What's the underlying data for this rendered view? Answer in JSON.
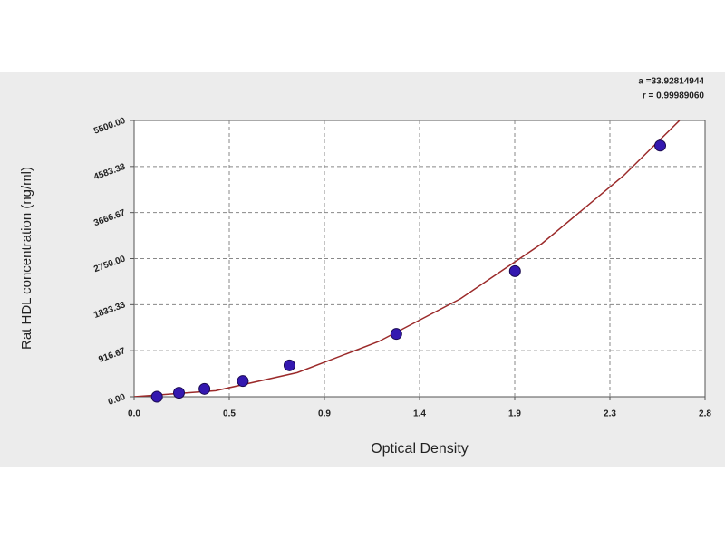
{
  "chart_data": {
    "type": "scatter",
    "annotations": [
      "a =33.92814944",
      "r = 0.99989060"
    ],
    "x_label": "Optical Density",
    "y_label": "Rat HDL concentration (ng/ml)",
    "xlim": [
      0,
      2.8
    ],
    "xticks": [
      {
        "value": 0,
        "label": "0.0"
      },
      {
        "value": 0.4667,
        "label": "0.5"
      },
      {
        "value": 0.9333,
        "label": "0.9"
      },
      {
        "value": 1.4,
        "label": "1.4"
      },
      {
        "value": 1.8667,
        "label": "1.9"
      },
      {
        "value": 2.3333,
        "label": "2.3"
      },
      {
        "value": 2.8,
        "label": "2.8"
      }
    ],
    "ylim": [
      0,
      5500
    ],
    "yticks": [
      {
        "value": 0,
        "label": "0.00"
      },
      {
        "value": 916.67,
        "label": "916.67"
      },
      {
        "value": 1833.33,
        "label": "1833.33"
      },
      {
        "value": 2750,
        "label": "2750.00"
      },
      {
        "value": 3666.67,
        "label": "3666.67"
      },
      {
        "value": 4583.33,
        "label": "4583.33"
      },
      {
        "value": 5500,
        "label": "5500.00"
      }
    ],
    "grid": true,
    "series": [
      {
        "style": "markers",
        "color": "#3418b0",
        "x": [
          0.112,
          0.22,
          0.345,
          0.533,
          0.762,
          1.286,
          1.868,
          2.58
        ],
        "values": [
          0,
          78.1,
          156.25,
          312.5,
          625,
          1250,
          2500,
          5000
        ]
      },
      {
        "style": "line",
        "color": "#9b2a2a",
        "x": [
          0,
          0.4,
          0.8,
          1.2,
          1.6,
          2.0,
          2.4,
          2.675
        ],
        "values": [
          0,
          120,
          480,
          1100,
          1950,
          3050,
          4400,
          5500
        ]
      }
    ]
  }
}
